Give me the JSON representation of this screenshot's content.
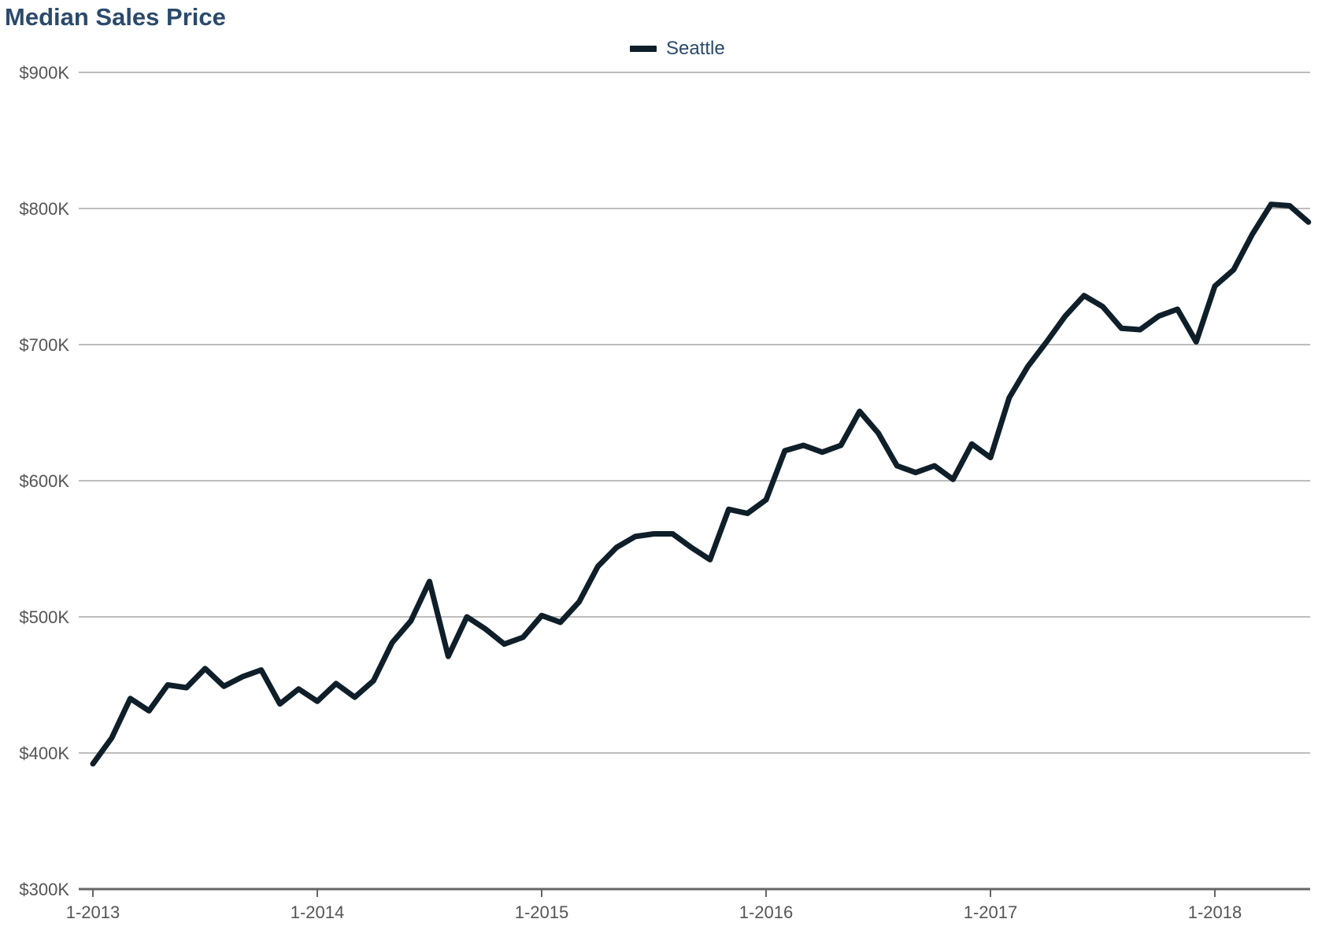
{
  "chart_data": {
    "type": "line",
    "title": "Median Sales Price",
    "xlabel": "",
    "ylabel": "",
    "ylim": [
      300000,
      900000
    ],
    "y_ticks": [
      300000,
      400000,
      500000,
      600000,
      700000,
      800000,
      900000
    ],
    "y_tick_labels": [
      "$300K",
      "$400K",
      "$500K",
      "$600K",
      "$700K",
      "$800K",
      "$900K"
    ],
    "x_ticks": [
      "2013-01",
      "2014-01",
      "2015-01",
      "2016-01",
      "2017-01",
      "2018-01"
    ],
    "x_tick_labels": [
      "1-2013",
      "1-2014",
      "1-2015",
      "1-2016",
      "1-2017",
      "1-2018"
    ],
    "grid": true,
    "legend_position": "top-center",
    "colors": {
      "title": "#2b4a6b",
      "series": "#0f1f2a",
      "grid": "#bdbdbd",
      "axis": "#666666",
      "tick_label": "#555555"
    },
    "series": [
      {
        "name": "Seattle",
        "color": "#0f1f2a",
        "x": [
          "2013-01",
          "2013-02",
          "2013-03",
          "2013-04",
          "2013-05",
          "2013-06",
          "2013-07",
          "2013-08",
          "2013-09",
          "2013-10",
          "2013-11",
          "2013-12",
          "2014-01",
          "2014-02",
          "2014-03",
          "2014-04",
          "2014-05",
          "2014-06",
          "2014-07",
          "2014-08",
          "2014-09",
          "2014-10",
          "2014-11",
          "2014-12",
          "2015-01",
          "2015-02",
          "2015-03",
          "2015-04",
          "2015-05",
          "2015-06",
          "2015-07",
          "2015-08",
          "2015-09",
          "2015-10",
          "2015-11",
          "2015-12",
          "2016-01",
          "2016-02",
          "2016-03",
          "2016-04",
          "2016-05",
          "2016-06",
          "2016-07",
          "2016-08",
          "2016-09",
          "2016-10",
          "2016-11",
          "2016-12",
          "2017-01",
          "2017-02",
          "2017-03",
          "2017-04",
          "2017-05",
          "2017-06",
          "2017-07",
          "2017-08",
          "2017-09",
          "2017-10",
          "2017-11",
          "2017-12",
          "2018-01",
          "2018-02",
          "2018-03",
          "2018-04",
          "2018-05",
          "2018-06"
        ],
        "values": [
          392000,
          411000,
          440000,
          431000,
          450000,
          448000,
          462000,
          449000,
          456000,
          461000,
          436000,
          447000,
          438000,
          451000,
          441000,
          453000,
          481000,
          497000,
          526000,
          471000,
          500000,
          491000,
          480000,
          485000,
          501000,
          496000,
          511000,
          537000,
          551000,
          559000,
          561000,
          561000,
          551000,
          542000,
          579000,
          576000,
          586000,
          622000,
          626000,
          621000,
          626000,
          651000,
          635000,
          611000,
          606000,
          611000,
          601000,
          627000,
          617000,
          661000,
          684000,
          702000,
          721000,
          736000,
          728000,
          712000,
          711000,
          721000,
          726000,
          702000,
          743000,
          755000,
          781000,
          803000,
          802000,
          790000
        ]
      }
    ]
  }
}
